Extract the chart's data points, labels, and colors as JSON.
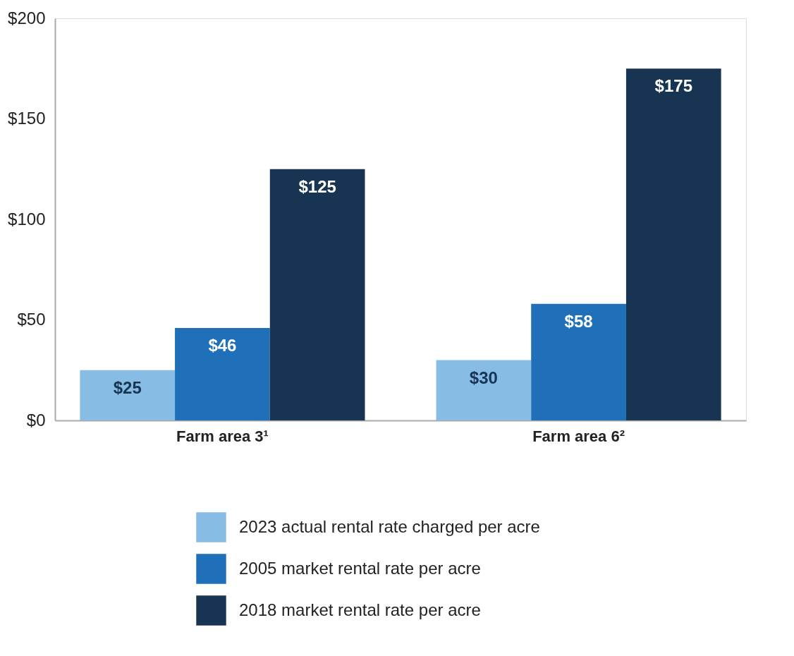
{
  "chart_data": {
    "type": "bar",
    "categories": [
      "Farm area 3¹",
      "Farm area 6²"
    ],
    "series": [
      {
        "name": "2023 actual rental rate charged per acre",
        "color": "#87bde5",
        "values": [
          25,
          30
        ],
        "value_labels": [
          "$25",
          "$30"
        ]
      },
      {
        "name": "2005 market rental rate per acre",
        "color": "#1f6fb9",
        "values": [
          46,
          58
        ],
        "value_labels": [
          "$46",
          "$58"
        ]
      },
      {
        "name": "2018 market rental rate per acre",
        "color": "#183453",
        "values": [
          125,
          175
        ],
        "value_labels": [
          "$125",
          "$175"
        ]
      }
    ],
    "ylim": [
      0,
      200
    ],
    "yticks": [
      {
        "value": 0,
        "label": "$0"
      },
      {
        "value": 50,
        "label": "$50"
      },
      {
        "value": 100,
        "label": "$100"
      },
      {
        "value": 150,
        "label": "$150"
      },
      {
        "value": 200,
        "label": "$200"
      }
    ],
    "grid": false,
    "legend": "bottom"
  }
}
